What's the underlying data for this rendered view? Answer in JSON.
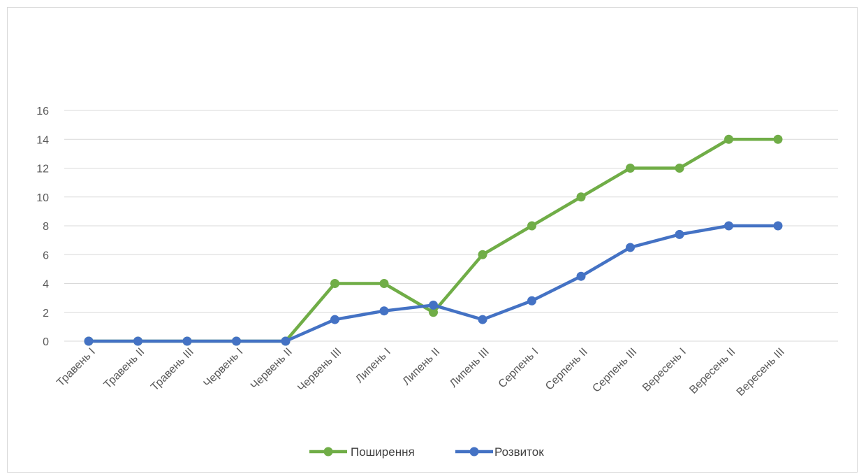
{
  "chart_data": {
    "type": "line",
    "categories": [
      "Травень I",
      "Травень II",
      "Травень III",
      "Червень I",
      "Червень II",
      "Червень III",
      "Липень I",
      "Липень II",
      "Липень III",
      "Серпень I",
      "Серпень II",
      "Серпень III",
      "Вересень I",
      "Вересень II",
      "Вересень III"
    ],
    "series": [
      {
        "name": "Поширення",
        "color": "#70ad47",
        "values": [
          0,
          0,
          0,
          0,
          0,
          4,
          4,
          2,
          6,
          8,
          10,
          12,
          12,
          14,
          14
        ]
      },
      {
        "name": "Розвиток",
        "color": "#4472c4",
        "values": [
          0,
          0,
          0,
          0,
          0,
          1.5,
          2.1,
          2.5,
          1.5,
          2.8,
          4.5,
          6.5,
          7.4,
          8,
          8
        ]
      }
    ],
    "yticks": [
      0,
      2,
      4,
      6,
      8,
      10,
      12,
      14,
      16
    ],
    "ylim": [
      0,
      16
    ],
    "grid": true,
    "legend": "bottom",
    "title": "",
    "xlabel": "",
    "ylabel": ""
  }
}
